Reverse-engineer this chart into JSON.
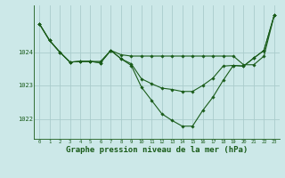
{
  "background_color": "#cce8e8",
  "grid_color": "#aacccc",
  "line_color": "#1a5c1a",
  "marker_color": "#1a5c1a",
  "xlabel": "Graphe pression niveau de la mer (hPa)",
  "xlabel_fontsize": 6.5,
  "yticks": [
    1022,
    1023,
    1024
  ],
  "ylim": [
    1021.4,
    1025.4
  ],
  "xlim": [
    -0.5,
    23.5
  ],
  "xticks": [
    0,
    1,
    2,
    3,
    4,
    5,
    6,
    7,
    8,
    9,
    10,
    11,
    12,
    13,
    14,
    15,
    16,
    17,
    18,
    19,
    20,
    21,
    22,
    23
  ],
  "series": [
    [
      1024.85,
      1024.35,
      1024.0,
      1023.7,
      1023.72,
      1023.72,
      1023.68,
      1024.05,
      1023.8,
      1023.6,
      1022.95,
      1022.55,
      1022.15,
      1021.95,
      1021.78,
      1021.78,
      1022.25,
      1022.65,
      1023.15,
      1023.6,
      1023.58,
      1023.82,
      1024.05,
      1025.1
    ],
    [
      1024.85,
      1024.35,
      1024.0,
      1023.7,
      1023.72,
      1023.72,
      1023.72,
      1024.05,
      1023.92,
      1023.88,
      1023.88,
      1023.88,
      1023.88,
      1023.88,
      1023.88,
      1023.88,
      1023.88,
      1023.88,
      1023.88,
      1023.88,
      1023.62,
      1023.62,
      1023.88,
      1025.1
    ],
    [
      1024.85,
      1024.35,
      1024.0,
      1023.7,
      1023.72,
      1023.72,
      1023.68,
      1024.05,
      1023.8,
      1023.65,
      1023.2,
      1023.05,
      1022.92,
      1022.88,
      1022.82,
      1022.82,
      1023.0,
      1023.22,
      1023.58,
      1023.6,
      1023.58,
      1023.82,
      1024.05,
      1025.1
    ]
  ]
}
